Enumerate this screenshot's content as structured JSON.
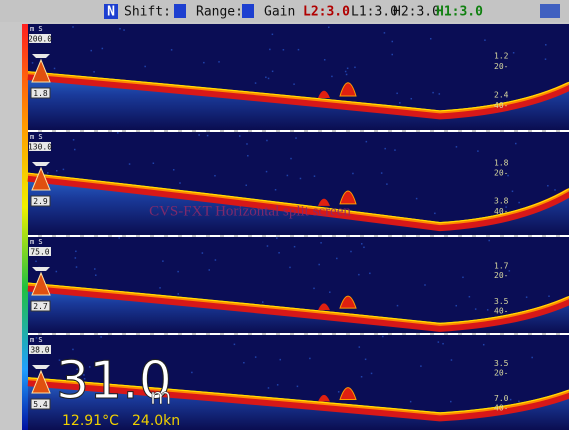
{
  "status_bar": {
    "mode": "N",
    "shift": "Shift:",
    "range": "Range:",
    "gain": "Gain",
    "l2": "L2:3.0",
    "l1": "L1:3.0",
    "h2": "H2:3.0",
    "h1": "H1:3.0"
  },
  "panels": [
    {
      "unit": "m S",
      "range": "200.0",
      "depth": "1.8",
      "scale": [
        "1.2",
        "20-",
        "2.4",
        "40-"
      ]
    },
    {
      "unit": "m S",
      "range": "130.0",
      "depth": "2.9",
      "scale": [
        "1.8",
        "20-",
        "3.8",
        "40-"
      ]
    },
    {
      "unit": "m S",
      "range": "75.0",
      "depth": "2.7",
      "scale": [
        "1.7",
        "20-",
        "3.5",
        "40-"
      ]
    },
    {
      "unit": "m S",
      "range": "38.0",
      "depth": "5.4",
      "scale": [
        "3.5",
        "20-",
        "7.0",
        "40-"
      ]
    }
  ],
  "readout": {
    "depth": "31.0",
    "unit": "m",
    "temperature": "12.91°C",
    "speed": "24.0kn"
  },
  "watermark": "CVS-FXT Horizontal split screen"
}
